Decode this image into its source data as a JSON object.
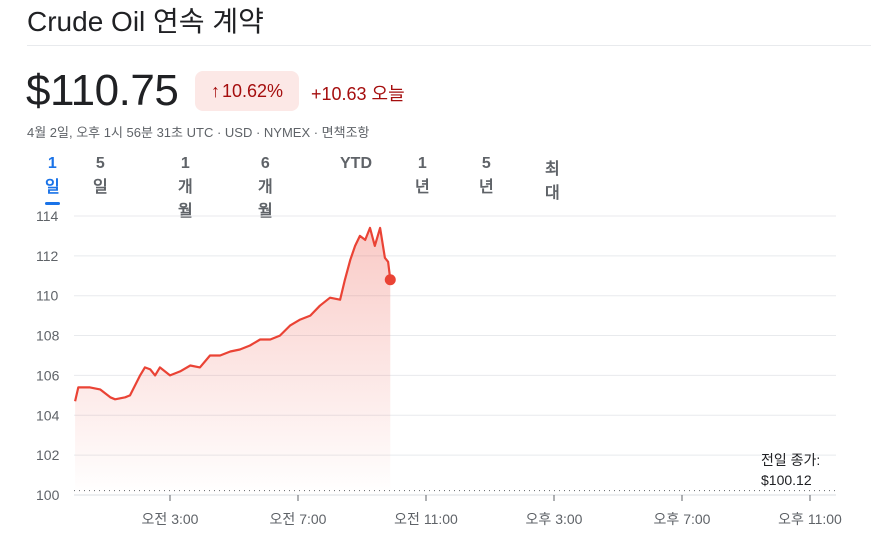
{
  "header": {
    "title": "Crude Oil 연속 계약"
  },
  "quote": {
    "price": "$110.75",
    "change_pct": "10.62%",
    "change_arrow": "arrow-up-icon",
    "change_abs": "+10.63 오늘",
    "meta": "4월 2일, 오후 1시 56분 31초 UTC · USD · NYMEX · 면책조항",
    "color": "#a50e0e"
  },
  "tabs": [
    {
      "label": "1일",
      "active": true
    },
    {
      "label": "5일"
    },
    {
      "label": "1개월"
    },
    {
      "label": "6개월"
    },
    {
      "label": "YTD"
    },
    {
      "label": "1년"
    },
    {
      "label": "5년"
    },
    {
      "label": "최대"
    }
  ],
  "prev_close": {
    "label": "전일 종가:",
    "value": "$100.12"
  },
  "chart_data": {
    "type": "area",
    "line_color": "#ea4335",
    "ylim": [
      100,
      114
    ],
    "yticks": [
      100,
      102,
      104,
      106,
      108,
      110,
      112,
      114
    ],
    "xlim": [
      "00:00",
      "24:00"
    ],
    "xticks": [
      {
        "t": "03:00",
        "label": "오전 3:00"
      },
      {
        "t": "07:00",
        "label": "오전 7:00"
      },
      {
        "t": "11:00",
        "label": "오전 11:00"
      },
      {
        "t": "15:00",
        "label": "오후 3:00"
      },
      {
        "t": "19:00",
        "label": "오후 7:00"
      },
      {
        "t": "23:00",
        "label": "오후 11:00"
      }
    ],
    "previous_close": 100.12,
    "points": [
      [
        "00:02",
        104.7
      ],
      [
        "00:08",
        105.4
      ],
      [
        "00:30",
        105.4
      ],
      [
        "00:49",
        105.3
      ],
      [
        "01:08",
        104.9
      ],
      [
        "01:17",
        104.8
      ],
      [
        "01:36",
        104.9
      ],
      [
        "01:45",
        105.0
      ],
      [
        "02:04",
        106.0
      ],
      [
        "02:13",
        106.4
      ],
      [
        "02:23",
        106.3
      ],
      [
        "02:32",
        106.0
      ],
      [
        "02:41",
        106.4
      ],
      [
        "03:00",
        106.0
      ],
      [
        "03:19",
        106.2
      ],
      [
        "03:38",
        106.5
      ],
      [
        "03:56",
        106.4
      ],
      [
        "04:15",
        107.0
      ],
      [
        "04:34",
        107.0
      ],
      [
        "04:53",
        107.2
      ],
      [
        "05:11",
        107.3
      ],
      [
        "05:30",
        107.5
      ],
      [
        "05:49",
        107.8
      ],
      [
        "06:08",
        107.8
      ],
      [
        "06:26",
        108.0
      ],
      [
        "06:45",
        108.5
      ],
      [
        "07:04",
        108.8
      ],
      [
        "07:23",
        109.0
      ],
      [
        "07:41",
        109.5
      ],
      [
        "08:00",
        109.9
      ],
      [
        "08:19",
        109.8
      ],
      [
        "08:28",
        110.8
      ],
      [
        "08:38",
        111.8
      ],
      [
        "08:47",
        112.5
      ],
      [
        "08:56",
        113.0
      ],
      [
        "09:06",
        112.8
      ],
      [
        "09:15",
        113.4
      ],
      [
        "09:24",
        112.5
      ],
      [
        "09:34",
        113.4
      ],
      [
        "09:43",
        111.9
      ],
      [
        "09:49",
        111.7
      ],
      [
        "09:53",
        110.8
      ]
    ]
  }
}
